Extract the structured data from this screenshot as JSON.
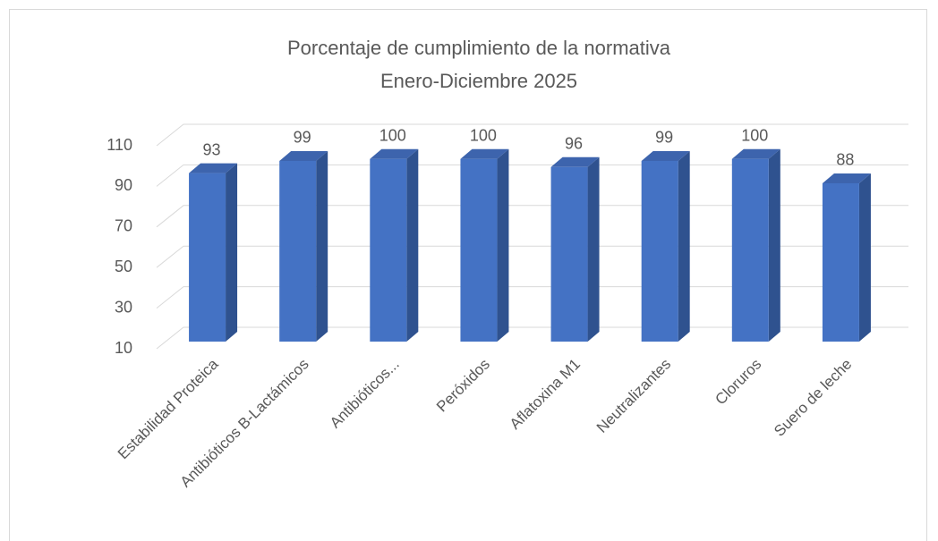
{
  "chart_data": {
    "type": "bar3d",
    "title": "Porcentaje de cumplimiento de la normativa",
    "subtitle": "Enero-Diciembre 2025",
    "categories": [
      "Estabilidad Proteica",
      "Antibióticos B-Lactámicos",
      "Antibióticos...",
      "Peróxidos",
      "Aflatoxina M1",
      "Neutralizantes",
      "Cloruros",
      "Suero de leche"
    ],
    "values": [
      93,
      99,
      100,
      100,
      96,
      99,
      100,
      88
    ],
    "color": "#4472c4",
    "ylim": [
      10,
      110
    ],
    "yticks": [
      10,
      30,
      50,
      70,
      90,
      110
    ],
    "grid": true
  }
}
